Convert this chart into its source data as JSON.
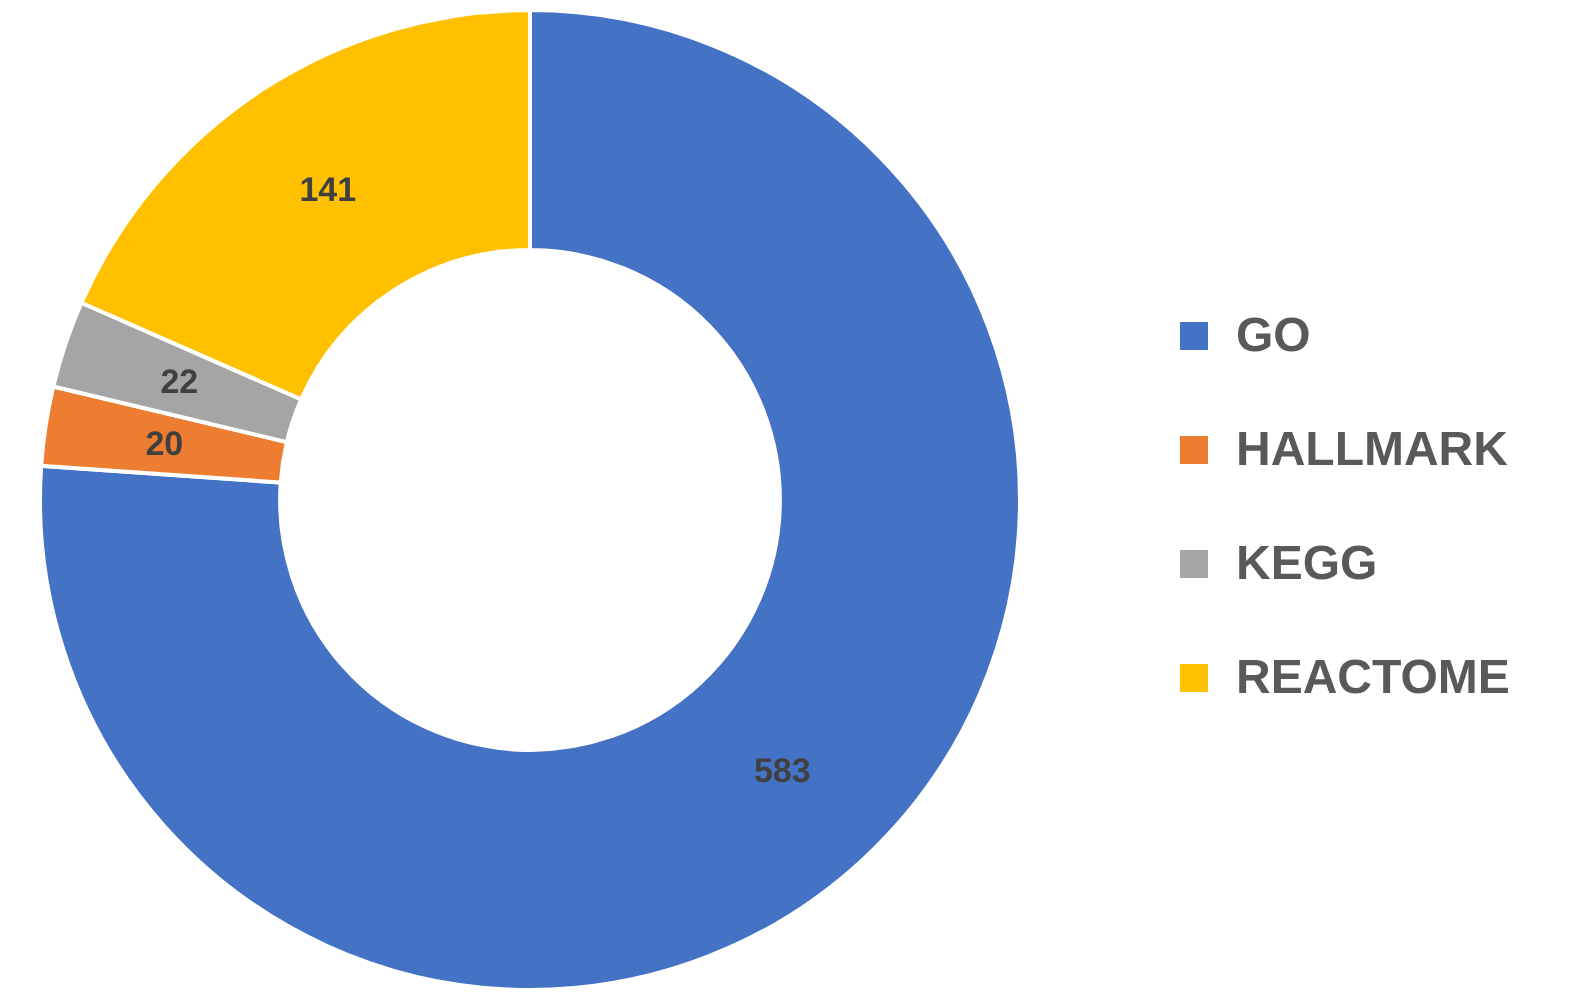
{
  "chart_data": {
    "type": "donut",
    "categories": [
      "GO",
      "HALLMARK",
      "KEGG",
      "REACTOME"
    ],
    "values": [
      583,
      20,
      22,
      141
    ],
    "colors": [
      "#4472c4",
      "#ed7d31",
      "#a5a5a5",
      "#ffc000"
    ],
    "data_labels": true,
    "legend": "right"
  }
}
